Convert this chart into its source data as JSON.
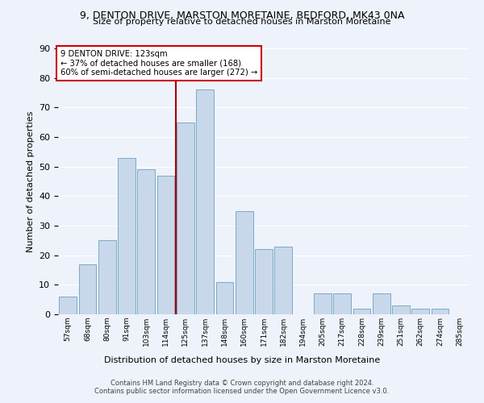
{
  "title1": "9, DENTON DRIVE, MARSTON MORETAINE, BEDFORD, MK43 0NA",
  "title2": "Size of property relative to detached houses in Marston Moretaine",
  "xlabel": "Distribution of detached houses by size in Marston Moretaine",
  "ylabel": "Number of detached properties",
  "categories": [
    "57sqm",
    "68sqm",
    "80sqm",
    "91sqm",
    "103sqm",
    "114sqm",
    "125sqm",
    "137sqm",
    "148sqm",
    "160sqm",
    "171sqm",
    "182sqm",
    "194sqm",
    "205sqm",
    "217sqm",
    "228sqm",
    "239sqm",
    "251sqm",
    "262sqm",
    "274sqm",
    "285sqm"
  ],
  "values": [
    6,
    17,
    25,
    53,
    49,
    47,
    65,
    76,
    11,
    35,
    22,
    23,
    0,
    7,
    7,
    2,
    7,
    3,
    2,
    2,
    0
  ],
  "bar_color": "#c8d8ea",
  "bar_edge_color": "#7aaac8",
  "annotation_line0": "9 DENTON DRIVE: 123sqm",
  "annotation_line1": "← 37% of detached houses are smaller (168)",
  "annotation_line2": "60% of semi-detached houses are larger (272) →",
  "ylim": [
    0,
    90
  ],
  "yticks": [
    0,
    10,
    20,
    30,
    40,
    50,
    60,
    70,
    80,
    90
  ],
  "footer1": "Contains HM Land Registry data © Crown copyright and database right 2024.",
  "footer2": "Contains public sector information licensed under the Open Government Licence v3.0.",
  "background_color": "#eef2fa",
  "grid_color": "#ffffff"
}
